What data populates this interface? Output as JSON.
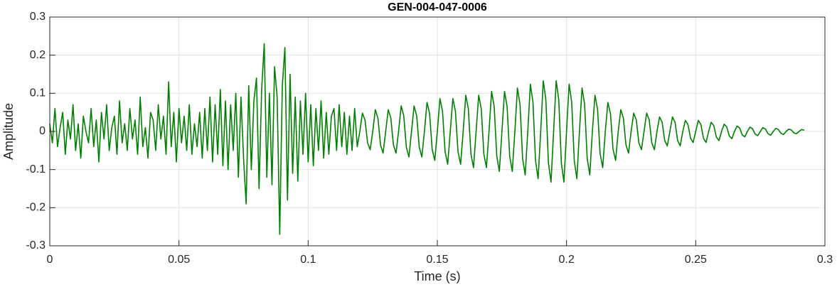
{
  "chart_data": {
    "type": "line",
    "title": "GEN-004-047-0006",
    "xlabel": "Time (s)",
    "ylabel": "Amplitude",
    "xlim": [
      0,
      0.3
    ],
    "ylim": [
      -0.3,
      0.3
    ],
    "xticks": [
      0,
      0.05,
      0.1,
      0.15,
      0.2,
      0.25,
      0.3
    ],
    "yticks": [
      -0.3,
      -0.2,
      -0.1,
      0,
      0.1,
      0.2,
      0.3
    ],
    "grid": true,
    "x": [
      0,
      0.001,
      0.002,
      0.003,
      0.004,
      0.005,
      0.006,
      0.007,
      0.008,
      0.009,
      0.01,
      0.011,
      0.012,
      0.013,
      0.014,
      0.015,
      0.016,
      0.017,
      0.018,
      0.019,
      0.02,
      0.021,
      0.022,
      0.023,
      0.024,
      0.025,
      0.026,
      0.027,
      0.028,
      0.029,
      0.03,
      0.031,
      0.032,
      0.033,
      0.034,
      0.035,
      0.036,
      0.037,
      0.038,
      0.039,
      0.04,
      0.041,
      0.042,
      0.043,
      0.044,
      0.045,
      0.046,
      0.047,
      0.048,
      0.049,
      0.05,
      0.051,
      0.052,
      0.053,
      0.054,
      0.055,
      0.056,
      0.057,
      0.058,
      0.059,
      0.06,
      0.061,
      0.062,
      0.063,
      0.064,
      0.065,
      0.066,
      0.067,
      0.068,
      0.069,
      0.07,
      0.071,
      0.072,
      0.073,
      0.074,
      0.075,
      0.076,
      0.077,
      0.078,
      0.079,
      0.08,
      0.081,
      0.082,
      0.083,
      0.084,
      0.085,
      0.086,
      0.087,
      0.088,
      0.089,
      0.09,
      0.091,
      0.092,
      0.093,
      0.094,
      0.095,
      0.096,
      0.097,
      0.098,
      0.099,
      0.1,
      0.101,
      0.102,
      0.103,
      0.104,
      0.105,
      0.106,
      0.107,
      0.108,
      0.109,
      0.11,
      0.111,
      0.112,
      0.113,
      0.114,
      0.115,
      0.116,
      0.117,
      0.118,
      0.119,
      0.12,
      0.121,
      0.122,
      0.123,
      0.124,
      0.125,
      0.126,
      0.127,
      0.128,
      0.129,
      0.13,
      0.131,
      0.132,
      0.133,
      0.134,
      0.135,
      0.136,
      0.137,
      0.138,
      0.139,
      0.14,
      0.141,
      0.142,
      0.143,
      0.144,
      0.145,
      0.146,
      0.147,
      0.148,
      0.149,
      0.15,
      0.151,
      0.152,
      0.153,
      0.154,
      0.155,
      0.156,
      0.157,
      0.158,
      0.159,
      0.16,
      0.161,
      0.162,
      0.163,
      0.164,
      0.165,
      0.166,
      0.167,
      0.168,
      0.169,
      0.17,
      0.171,
      0.172,
      0.173,
      0.174,
      0.175,
      0.176,
      0.177,
      0.178,
      0.179,
      0.18,
      0.181,
      0.182,
      0.183,
      0.184,
      0.185,
      0.186,
      0.187,
      0.188,
      0.189,
      0.19,
      0.191,
      0.192,
      0.193,
      0.194,
      0.195,
      0.196,
      0.197,
      0.198,
      0.199,
      0.2,
      0.201,
      0.202,
      0.203,
      0.204,
      0.205,
      0.206,
      0.207,
      0.208,
      0.209,
      0.21,
      0.211,
      0.212,
      0.213,
      0.214,
      0.215,
      0.216,
      0.217,
      0.218,
      0.219,
      0.22,
      0.221,
      0.222,
      0.223,
      0.224,
      0.225,
      0.226,
      0.227,
      0.228,
      0.229,
      0.23,
      0.231,
      0.232,
      0.233,
      0.234,
      0.235,
      0.236,
      0.237,
      0.238,
      0.239,
      0.24,
      0.241,
      0.242,
      0.243,
      0.244,
      0.245,
      0.246,
      0.247,
      0.248,
      0.249,
      0.25,
      0.251,
      0.252,
      0.253,
      0.254,
      0.255,
      0.256,
      0.257,
      0.258,
      0.259,
      0.26,
      0.261,
      0.262,
      0.263,
      0.264,
      0.265,
      0.266,
      0.267,
      0.268,
      0.269,
      0.27,
      0.271,
      0.272,
      0.273,
      0.274,
      0.275,
      0.276,
      0.277,
      0.278,
      0.279,
      0.28,
      0.281,
      0.282,
      0.283,
      0.284,
      0.285,
      0.286,
      0.287,
      0.288,
      0.289,
      0.29,
      0.291,
      0.292
    ],
    "series": [
      {
        "color": "#008000",
        "values": [
          0.02,
          -0.03,
          0.06,
          -0.04,
          0.01,
          0.05,
          -0.06,
          0.03,
          -0.02,
          0.07,
          -0.05,
          0.02,
          -0.07,
          0.04,
          0,
          -0.03,
          0.06,
          -0.04,
          0.03,
          -0.08,
          0.05,
          -0.02,
          0.07,
          -0.05,
          0.01,
          0.04,
          -0.06,
          0.08,
          -0.03,
          0.02,
          -0.05,
          0.06,
          -0.02,
          0.03,
          -0.06,
          0.09,
          -0.04,
          0.01,
          -0.07,
          0.05,
          0.03,
          -0.05,
          0.07,
          -0.02,
          0.04,
          -0.06,
          0.13,
          -0.04,
          0.05,
          -0.08,
          0.06,
          -0.03,
          0.04,
          -0.05,
          0.07,
          -0.06,
          0.02,
          -0.04,
          0.05,
          -0.07,
          0.06,
          -0.05,
          0.09,
          -0.08,
          0.07,
          -0.06,
          0.11,
          -0.09,
          0.08,
          -0.1,
          0.07,
          -0.05,
          0.1,
          -0.12,
          0.09,
          -0.07,
          -0.19,
          0.12,
          -0.1,
          0.08,
          0.14,
          -0.15,
          0.11,
          0.23,
          -0.12,
          0.1,
          -0.14,
          0.17,
          0.09,
          -0.27,
          0.12,
          0.22,
          -0.18,
          0.15,
          -0.11,
          0.09,
          -0.13,
          0.08,
          -0.06,
          0.1,
          -0.08,
          0.07,
          -0.09,
          0.06,
          -0.05,
          0.08,
          -0.07,
          0.05,
          -0.06,
          0.04,
          0.06,
          -0.05,
          0.07,
          -0.04,
          0.05,
          -0.06,
          0.04,
          -0.05,
          0.06,
          -0.04,
          0,
          0.048,
          0.03,
          -0.03,
          -0.048,
          0,
          0.057,
          0.035,
          -0.035,
          -0.057,
          0,
          0.057,
          0.035,
          -0.035,
          -0.057,
          0,
          0.067,
          0.041,
          -0.041,
          -0.067,
          0,
          0.067,
          0.041,
          -0.041,
          -0.067,
          0,
          0.076,
          0.047,
          -0.047,
          -0.076,
          0,
          0.086,
          0.053,
          -0.053,
          -0.086,
          0,
          0.086,
          0.053,
          -0.053,
          -0.086,
          0,
          0.095,
          0.059,
          -0.059,
          -0.095,
          0,
          0.095,
          0.059,
          -0.059,
          -0.095,
          0,
          0.105,
          0.065,
          -0.065,
          -0.105,
          0,
          0.105,
          0.065,
          -0.065,
          -0.105,
          0,
          0.114,
          0.071,
          -0.071,
          -0.114,
          0,
          0.124,
          0.077,
          -0.077,
          -0.124,
          0,
          0.133,
          0.083,
          -0.083,
          -0.133,
          0,
          0.133,
          0.083,
          -0.083,
          -0.133,
          0,
          0.124,
          0.077,
          -0.077,
          -0.124,
          0,
          0.114,
          0.071,
          -0.071,
          -0.114,
          0,
          0.095,
          0.059,
          -0.059,
          -0.095,
          0,
          0.076,
          0.047,
          -0.047,
          -0.076,
          0,
          0.057,
          0.035,
          -0.035,
          -0.057,
          0,
          0.048,
          0.03,
          -0.03,
          -0.048,
          0,
          0.048,
          0.03,
          -0.03,
          -0.048,
          0,
          0.038,
          0.024,
          -0.024,
          -0.038,
          0,
          0.038,
          0.024,
          -0.024,
          -0.038,
          0,
          0.029,
          0.018,
          -0.018,
          -0.029,
          0,
          0.029,
          0.018,
          -0.018,
          -0.029,
          0,
          0.024,
          0.015,
          -0.015,
          -0.024,
          0,
          0.019,
          0.012,
          -0.012,
          -0.019,
          0,
          0.014,
          0.009,
          -0.009,
          -0.014,
          0,
          0.011,
          0.007,
          -0.007,
          -0.011,
          0,
          0.01,
          0.006,
          -0.006,
          -0.01,
          0,
          0.008,
          0.005,
          -0.005,
          -0.008,
          0,
          0.006,
          0.004,
          -0.004,
          -0.006,
          0,
          0.005,
          0.003
        ]
      }
    ]
  }
}
